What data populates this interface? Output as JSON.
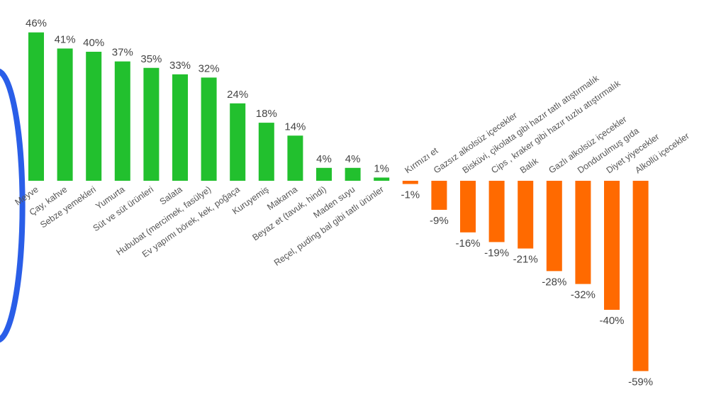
{
  "chart_data": {
    "type": "bar",
    "categories": [
      "Meyve",
      "Çay, kahve",
      "Sebze yemekleri",
      "Yumurta",
      "Süt ve süt ürünleri",
      "Salata",
      "Hububat (mercimek, fasülye)",
      "Ev yapımı börek, kek, poğaça",
      "Kuruyemiş",
      "Makarna",
      "Beyaz et (tavuk, hindi)",
      "Maden suyu",
      "Reçel, puding bal gibi tatlı ürünler",
      "Kırmızı et",
      "Gazsız alkolsüz içecekler",
      "Bisküvi, çikolata gibi hazır tatlı atıştırmalık",
      "Cips , kraker gibi hazır tuzlu atıştırmalık",
      "Balık",
      "Gazlı alkolsüz içecekler",
      "Dondurulmuş gıda",
      "Diyet yiyecekler",
      "Alkollü içecekler"
    ],
    "values": [
      46,
      41,
      40,
      37,
      35,
      33,
      32,
      24,
      18,
      14,
      4,
      4,
      1,
      -1,
      -9,
      -16,
      -19,
      -21,
      -28,
      -32,
      -40,
      -59
    ],
    "value_labels": [
      "46%",
      "41%",
      "40%",
      "37%",
      "35%",
      "33%",
      "32%",
      "24%",
      "18%",
      "14%",
      "4%",
      "4%",
      "1%",
      "-1%",
      "-9%",
      "-16%",
      "-19%",
      "-21%",
      "-28%",
      "-32%",
      "-40%",
      "-59%"
    ],
    "positive_color": "#22c02e",
    "negative_color": "#ff6a00"
  }
}
